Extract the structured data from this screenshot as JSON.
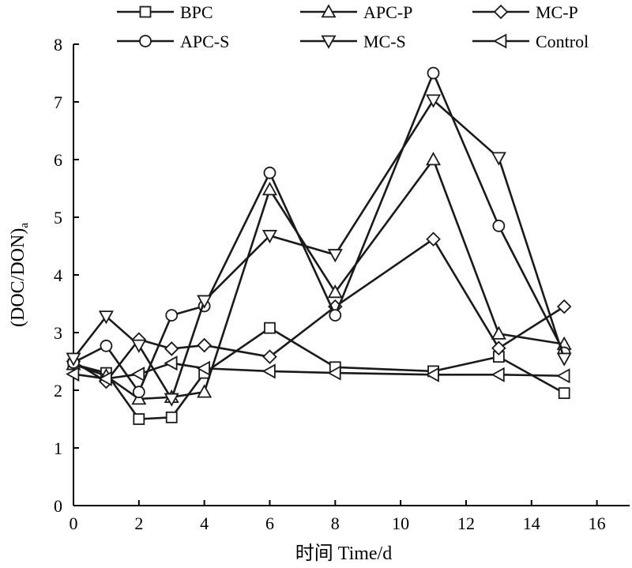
{
  "chart_data": {
    "type": "line",
    "xlabel": "时间 Time/d",
    "ylabel": "(DOC/DON)",
    "ylabel_subscript": "a",
    "xlim": [
      0,
      17
    ],
    "ylim": [
      0,
      8
    ],
    "xticks": [
      0,
      2,
      4,
      6,
      8,
      10,
      12,
      14,
      16
    ],
    "yticks": [
      0,
      1,
      2,
      3,
      4,
      5,
      6,
      7,
      8
    ],
    "grid": false,
    "legend_position": "top",
    "series": [
      {
        "name": "BPC",
        "marker": "square",
        "x": [
          0,
          1,
          2,
          3,
          4,
          6,
          8,
          11,
          13,
          15
        ],
        "y": [
          2.45,
          2.3,
          1.5,
          1.53,
          2.3,
          3.08,
          2.4,
          2.33,
          2.58,
          1.95
        ]
      },
      {
        "name": "APC-P",
        "marker": "triangle-up",
        "x": [
          0,
          1,
          2,
          3,
          4,
          6,
          8,
          11,
          13,
          15
        ],
        "y": [
          2.45,
          2.25,
          1.85,
          1.88,
          1.97,
          5.48,
          3.7,
          6.0,
          2.98,
          2.8
        ]
      },
      {
        "name": "MC-P",
        "marker": "diamond",
        "x": [
          0,
          1,
          2,
          3,
          4,
          6,
          8,
          11,
          13,
          15
        ],
        "y": [
          2.5,
          2.15,
          2.88,
          2.72,
          2.78,
          2.58,
          3.45,
          4.62,
          2.73,
          3.45
        ]
      },
      {
        "name": "APC-S",
        "marker": "circle",
        "x": [
          0,
          1,
          2,
          3,
          4,
          6,
          8,
          11,
          13,
          15
        ],
        "y": [
          2.48,
          2.77,
          1.97,
          3.3,
          3.46,
          5.77,
          3.3,
          7.5,
          4.85,
          2.65
        ]
      },
      {
        "name": "MC-S",
        "marker": "triangle-down",
        "x": [
          0,
          1,
          2,
          3,
          4,
          6,
          8,
          11,
          13,
          15
        ],
        "y": [
          2.55,
          3.28,
          2.78,
          1.85,
          3.55,
          4.68,
          4.35,
          7.03,
          6.03,
          2.55
        ]
      },
      {
        "name": "Control",
        "marker": "triangle-left",
        "x": [
          0,
          1,
          2,
          3,
          4,
          6,
          8,
          11,
          13,
          15
        ],
        "y": [
          2.28,
          2.2,
          2.28,
          2.47,
          2.38,
          2.33,
          2.3,
          2.27,
          2.27,
          2.25
        ]
      }
    ]
  }
}
